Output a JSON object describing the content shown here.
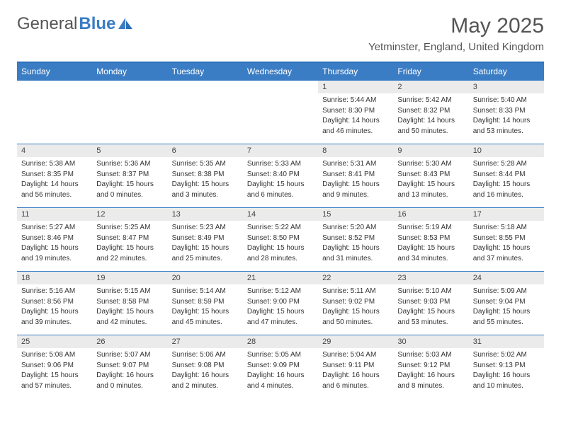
{
  "brand": {
    "text1": "General",
    "text2": "Blue"
  },
  "title": "May 2025",
  "location": "Yetminster, England, United Kingdom",
  "colors": {
    "accent": "#3b7dc4",
    "headerBorder": "#2b6fb8",
    "dayBg": "#ebebeb",
    "text": "#555"
  },
  "dayNames": [
    "Sunday",
    "Monday",
    "Tuesday",
    "Wednesday",
    "Thursday",
    "Friday",
    "Saturday"
  ],
  "weeks": [
    [
      {
        "n": "",
        "sr": "",
        "ss": "",
        "dl": ""
      },
      {
        "n": "",
        "sr": "",
        "ss": "",
        "dl": ""
      },
      {
        "n": "",
        "sr": "",
        "ss": "",
        "dl": ""
      },
      {
        "n": "",
        "sr": "",
        "ss": "",
        "dl": ""
      },
      {
        "n": "1",
        "sr": "Sunrise: 5:44 AM",
        "ss": "Sunset: 8:30 PM",
        "dl": "Daylight: 14 hours and 46 minutes."
      },
      {
        "n": "2",
        "sr": "Sunrise: 5:42 AM",
        "ss": "Sunset: 8:32 PM",
        "dl": "Daylight: 14 hours and 50 minutes."
      },
      {
        "n": "3",
        "sr": "Sunrise: 5:40 AM",
        "ss": "Sunset: 8:33 PM",
        "dl": "Daylight: 14 hours and 53 minutes."
      }
    ],
    [
      {
        "n": "4",
        "sr": "Sunrise: 5:38 AM",
        "ss": "Sunset: 8:35 PM",
        "dl": "Daylight: 14 hours and 56 minutes."
      },
      {
        "n": "5",
        "sr": "Sunrise: 5:36 AM",
        "ss": "Sunset: 8:37 PM",
        "dl": "Daylight: 15 hours and 0 minutes."
      },
      {
        "n": "6",
        "sr": "Sunrise: 5:35 AM",
        "ss": "Sunset: 8:38 PM",
        "dl": "Daylight: 15 hours and 3 minutes."
      },
      {
        "n": "7",
        "sr": "Sunrise: 5:33 AM",
        "ss": "Sunset: 8:40 PM",
        "dl": "Daylight: 15 hours and 6 minutes."
      },
      {
        "n": "8",
        "sr": "Sunrise: 5:31 AM",
        "ss": "Sunset: 8:41 PM",
        "dl": "Daylight: 15 hours and 9 minutes."
      },
      {
        "n": "9",
        "sr": "Sunrise: 5:30 AM",
        "ss": "Sunset: 8:43 PM",
        "dl": "Daylight: 15 hours and 13 minutes."
      },
      {
        "n": "10",
        "sr": "Sunrise: 5:28 AM",
        "ss": "Sunset: 8:44 PM",
        "dl": "Daylight: 15 hours and 16 minutes."
      }
    ],
    [
      {
        "n": "11",
        "sr": "Sunrise: 5:27 AM",
        "ss": "Sunset: 8:46 PM",
        "dl": "Daylight: 15 hours and 19 minutes."
      },
      {
        "n": "12",
        "sr": "Sunrise: 5:25 AM",
        "ss": "Sunset: 8:47 PM",
        "dl": "Daylight: 15 hours and 22 minutes."
      },
      {
        "n": "13",
        "sr": "Sunrise: 5:23 AM",
        "ss": "Sunset: 8:49 PM",
        "dl": "Daylight: 15 hours and 25 minutes."
      },
      {
        "n": "14",
        "sr": "Sunrise: 5:22 AM",
        "ss": "Sunset: 8:50 PM",
        "dl": "Daylight: 15 hours and 28 minutes."
      },
      {
        "n": "15",
        "sr": "Sunrise: 5:20 AM",
        "ss": "Sunset: 8:52 PM",
        "dl": "Daylight: 15 hours and 31 minutes."
      },
      {
        "n": "16",
        "sr": "Sunrise: 5:19 AM",
        "ss": "Sunset: 8:53 PM",
        "dl": "Daylight: 15 hours and 34 minutes."
      },
      {
        "n": "17",
        "sr": "Sunrise: 5:18 AM",
        "ss": "Sunset: 8:55 PM",
        "dl": "Daylight: 15 hours and 37 minutes."
      }
    ],
    [
      {
        "n": "18",
        "sr": "Sunrise: 5:16 AM",
        "ss": "Sunset: 8:56 PM",
        "dl": "Daylight: 15 hours and 39 minutes."
      },
      {
        "n": "19",
        "sr": "Sunrise: 5:15 AM",
        "ss": "Sunset: 8:58 PM",
        "dl": "Daylight: 15 hours and 42 minutes."
      },
      {
        "n": "20",
        "sr": "Sunrise: 5:14 AM",
        "ss": "Sunset: 8:59 PM",
        "dl": "Daylight: 15 hours and 45 minutes."
      },
      {
        "n": "21",
        "sr": "Sunrise: 5:12 AM",
        "ss": "Sunset: 9:00 PM",
        "dl": "Daylight: 15 hours and 47 minutes."
      },
      {
        "n": "22",
        "sr": "Sunrise: 5:11 AM",
        "ss": "Sunset: 9:02 PM",
        "dl": "Daylight: 15 hours and 50 minutes."
      },
      {
        "n": "23",
        "sr": "Sunrise: 5:10 AM",
        "ss": "Sunset: 9:03 PM",
        "dl": "Daylight: 15 hours and 53 minutes."
      },
      {
        "n": "24",
        "sr": "Sunrise: 5:09 AM",
        "ss": "Sunset: 9:04 PM",
        "dl": "Daylight: 15 hours and 55 minutes."
      }
    ],
    [
      {
        "n": "25",
        "sr": "Sunrise: 5:08 AM",
        "ss": "Sunset: 9:06 PM",
        "dl": "Daylight: 15 hours and 57 minutes."
      },
      {
        "n": "26",
        "sr": "Sunrise: 5:07 AM",
        "ss": "Sunset: 9:07 PM",
        "dl": "Daylight: 16 hours and 0 minutes."
      },
      {
        "n": "27",
        "sr": "Sunrise: 5:06 AM",
        "ss": "Sunset: 9:08 PM",
        "dl": "Daylight: 16 hours and 2 minutes."
      },
      {
        "n": "28",
        "sr": "Sunrise: 5:05 AM",
        "ss": "Sunset: 9:09 PM",
        "dl": "Daylight: 16 hours and 4 minutes."
      },
      {
        "n": "29",
        "sr": "Sunrise: 5:04 AM",
        "ss": "Sunset: 9:11 PM",
        "dl": "Daylight: 16 hours and 6 minutes."
      },
      {
        "n": "30",
        "sr": "Sunrise: 5:03 AM",
        "ss": "Sunset: 9:12 PM",
        "dl": "Daylight: 16 hours and 8 minutes."
      },
      {
        "n": "31",
        "sr": "Sunrise: 5:02 AM",
        "ss": "Sunset: 9:13 PM",
        "dl": "Daylight: 16 hours and 10 minutes."
      }
    ]
  ]
}
